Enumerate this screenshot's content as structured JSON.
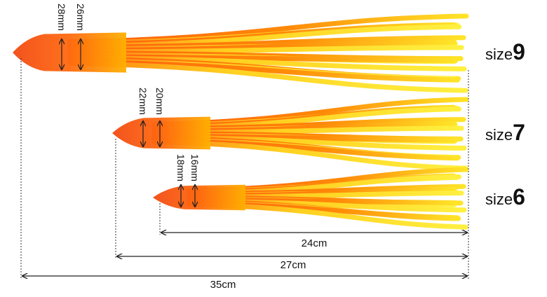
{
  "items": [
    {
      "size_word": "size",
      "size_number": "9",
      "dimensions": [
        "28mm",
        "26mm"
      ],
      "length": "35cm"
    },
    {
      "size_word": "size",
      "size_number": "7",
      "dimensions": [
        "22mm",
        "20mm"
      ],
      "length": "27cm"
    },
    {
      "size_word": "size",
      "size_number": "6",
      "dimensions": [
        "18mm",
        "16mm"
      ],
      "length": "24cm"
    }
  ]
}
